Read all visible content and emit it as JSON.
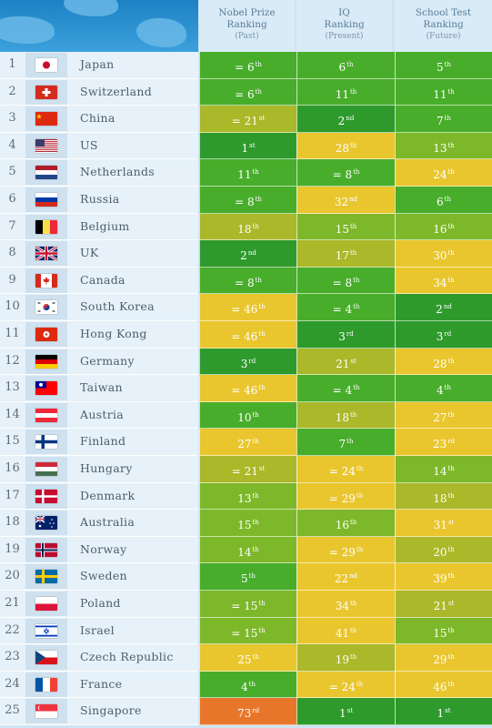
{
  "headers": [
    {
      "l1": "Nobel Prize",
      "l2": "Ranking",
      "l3": "(Past)"
    },
    {
      "l1": "IQ",
      "l2": "Ranking",
      "l3": "(Present)"
    },
    {
      "l1": "School Test",
      "l2": "Ranking",
      "l3": "(Future)"
    }
  ],
  "colors": {
    "dark_green": "#2e9a2c",
    "green": "#48ad2b",
    "lime": "#7db82a",
    "olive": "#aab82a",
    "yellow": "#e9c62e",
    "orange": "#e8762a"
  },
  "chart_data": {
    "type": "table",
    "columns": [
      "Nobel Prize Ranking (Past)",
      "IQ Ranking (Present)",
      "School Test Ranking (Future)"
    ],
    "rows": [
      {
        "rank": "1",
        "country": "Japan",
        "flag": "japan-flag",
        "nobel": {
          "eq": "= ",
          "n": "6",
          "suf": "th"
        },
        "iq": {
          "eq": "",
          "n": "6",
          "suf": "th"
        },
        "school": {
          "eq": "",
          "n": "5",
          "suf": "th"
        }
      },
      {
        "rank": "2",
        "country": "Switzerland",
        "flag": "switzerland-flag",
        "nobel": {
          "eq": "= ",
          "n": "6",
          "suf": "th"
        },
        "iq": {
          "eq": "",
          "n": "11",
          "suf": "th"
        },
        "school": {
          "eq": "",
          "n": "11",
          "suf": "th"
        }
      },
      {
        "rank": "3",
        "country": "China",
        "flag": "china-flag",
        "nobel": {
          "eq": "= ",
          "n": "21",
          "suf": "st"
        },
        "iq": {
          "eq": "",
          "n": "2",
          "suf": "nd"
        },
        "school": {
          "eq": "",
          "n": "7",
          "suf": "th"
        }
      },
      {
        "rank": "4",
        "country": "US",
        "flag": "us-flag",
        "nobel": {
          "eq": "",
          "n": "1",
          "suf": "st"
        },
        "iq": {
          "eq": "",
          "n": "28",
          "suf": "th"
        },
        "school": {
          "eq": "",
          "n": "13",
          "suf": "th"
        }
      },
      {
        "rank": "5",
        "country": "Netherlands",
        "flag": "netherlands-flag",
        "nobel": {
          "eq": "",
          "n": "11",
          "suf": "th"
        },
        "iq": {
          "eq": "= ",
          "n": "8",
          "suf": "th"
        },
        "school": {
          "eq": "",
          "n": "24",
          "suf": "th"
        }
      },
      {
        "rank": "6",
        "country": "Russia",
        "flag": "russia-flag",
        "nobel": {
          "eq": "= ",
          "n": "8",
          "suf": "th"
        },
        "iq": {
          "eq": "",
          "n": "32",
          "suf": "nd"
        },
        "school": {
          "eq": "",
          "n": "6",
          "suf": "th"
        }
      },
      {
        "rank": "7",
        "country": "Belgium",
        "flag": "belgium-flag",
        "nobel": {
          "eq": "",
          "n": "18",
          "suf": "th"
        },
        "iq": {
          "eq": "",
          "n": "15",
          "suf": "th"
        },
        "school": {
          "eq": "",
          "n": "16",
          "suf": "th"
        }
      },
      {
        "rank": "8",
        "country": "UK",
        "flag": "uk-flag",
        "nobel": {
          "eq": "",
          "n": "2",
          "suf": "nd"
        },
        "iq": {
          "eq": "",
          "n": "17",
          "suf": "th"
        },
        "school": {
          "eq": "",
          "n": "30",
          "suf": "th"
        }
      },
      {
        "rank": "9",
        "country": "Canada",
        "flag": "canada-flag",
        "nobel": {
          "eq": "= ",
          "n": "8",
          "suf": "th"
        },
        "iq": {
          "eq": "= ",
          "n": "8",
          "suf": "th"
        },
        "school": {
          "eq": "",
          "n": "34",
          "suf": "th"
        }
      },
      {
        "rank": "10",
        "country": "South Korea",
        "flag": "south-korea-flag",
        "nobel": {
          "eq": "= ",
          "n": "46",
          "suf": "th"
        },
        "iq": {
          "eq": "= ",
          "n": "4",
          "suf": "th"
        },
        "school": {
          "eq": "",
          "n": "2",
          "suf": "nd"
        }
      },
      {
        "rank": "11",
        "country": "Hong Kong",
        "flag": "hong-kong-flag",
        "nobel": {
          "eq": "= ",
          "n": "46",
          "suf": "th"
        },
        "iq": {
          "eq": "",
          "n": "3",
          "suf": "rd"
        },
        "school": {
          "eq": "",
          "n": "3",
          "suf": "rd"
        }
      },
      {
        "rank": "12",
        "country": "Germany",
        "flag": "germany-flag",
        "nobel": {
          "eq": "",
          "n": "3",
          "suf": "rd"
        },
        "iq": {
          "eq": "",
          "n": "21",
          "suf": "st"
        },
        "school": {
          "eq": "",
          "n": "28",
          "suf": "th"
        }
      },
      {
        "rank": "13",
        "country": "Taiwan",
        "flag": "taiwan-flag",
        "nobel": {
          "eq": "= ",
          "n": "46",
          "suf": "th"
        },
        "iq": {
          "eq": "= ",
          "n": "4",
          "suf": "th"
        },
        "school": {
          "eq": "",
          "n": "4",
          "suf": "th"
        }
      },
      {
        "rank": "14",
        "country": "Austria",
        "flag": "austria-flag",
        "nobel": {
          "eq": "",
          "n": "10",
          "suf": "th"
        },
        "iq": {
          "eq": "",
          "n": "18",
          "suf": "th"
        },
        "school": {
          "eq": "",
          "n": "27",
          "suf": "th"
        }
      },
      {
        "rank": "15",
        "country": "Finland",
        "flag": "finland-flag",
        "nobel": {
          "eq": "",
          "n": "27",
          "suf": "th"
        },
        "iq": {
          "eq": "",
          "n": "7",
          "suf": "th"
        },
        "school": {
          "eq": "",
          "n": "23",
          "suf": "rd"
        }
      },
      {
        "rank": "16",
        "country": "Hungary",
        "flag": "hungary-flag",
        "nobel": {
          "eq": "= ",
          "n": "21",
          "suf": "st"
        },
        "iq": {
          "eq": "= ",
          "n": "24",
          "suf": "th"
        },
        "school": {
          "eq": "",
          "n": "14",
          "suf": "th"
        }
      },
      {
        "rank": "17",
        "country": "Denmark",
        "flag": "denmark-flag",
        "nobel": {
          "eq": "",
          "n": "13",
          "suf": "th"
        },
        "iq": {
          "eq": "= ",
          "n": "29",
          "suf": "th"
        },
        "school": {
          "eq": "",
          "n": "18",
          "suf": "th"
        }
      },
      {
        "rank": "18",
        "country": "Australia",
        "flag": "australia-flag",
        "nobel": {
          "eq": "",
          "n": "15",
          "suf": "th"
        },
        "iq": {
          "eq": "",
          "n": "16",
          "suf": "th"
        },
        "school": {
          "eq": "",
          "n": "31",
          "suf": "st"
        }
      },
      {
        "rank": "19",
        "country": "Norway",
        "flag": "norway-flag",
        "nobel": {
          "eq": "",
          "n": "14",
          "suf": "th"
        },
        "iq": {
          "eq": "= ",
          "n": "29",
          "suf": "th"
        },
        "school": {
          "eq": "",
          "n": "20",
          "suf": "th"
        }
      },
      {
        "rank": "20",
        "country": "Sweden",
        "flag": "sweden-flag",
        "nobel": {
          "eq": "",
          "n": "5",
          "suf": "th"
        },
        "iq": {
          "eq": "",
          "n": "22",
          "suf": "nd"
        },
        "school": {
          "eq": "",
          "n": "39",
          "suf": "th"
        }
      },
      {
        "rank": "21",
        "country": "Poland",
        "flag": "poland-flag",
        "nobel": {
          "eq": "= ",
          "n": "15",
          "suf": "th"
        },
        "iq": {
          "eq": "",
          "n": "34",
          "suf": "th"
        },
        "school": {
          "eq": "",
          "n": "21",
          "suf": "st"
        }
      },
      {
        "rank": "22",
        "country": "Israel",
        "flag": "israel-flag",
        "nobel": {
          "eq": "= ",
          "n": "15",
          "suf": "th"
        },
        "iq": {
          "eq": "",
          "n": "41",
          "suf": "th"
        },
        "school": {
          "eq": "",
          "n": "15",
          "suf": "th"
        }
      },
      {
        "rank": "23",
        "country": "Czech Republic",
        "flag": "czech-republic-flag",
        "nobel": {
          "eq": "",
          "n": "25",
          "suf": "th"
        },
        "iq": {
          "eq": "",
          "n": "19",
          "suf": "th"
        },
        "school": {
          "eq": "",
          "n": "29",
          "suf": "th"
        }
      },
      {
        "rank": "24",
        "country": "France",
        "flag": "france-flag",
        "nobel": {
          "eq": "",
          "n": "4",
          "suf": "th"
        },
        "iq": {
          "eq": "= ",
          "n": "24",
          "suf": "th"
        },
        "school": {
          "eq": "",
          "n": "46",
          "suf": "th"
        }
      },
      {
        "rank": "25",
        "country": "Singapore",
        "flag": "singapore-flag",
        "nobel": {
          "eq": "",
          "n": "73",
          "suf": "rd"
        },
        "iq": {
          "eq": "",
          "n": "1",
          "suf": "st"
        },
        "school": {
          "eq": "",
          "n": "1",
          "suf": "st"
        }
      }
    ]
  }
}
